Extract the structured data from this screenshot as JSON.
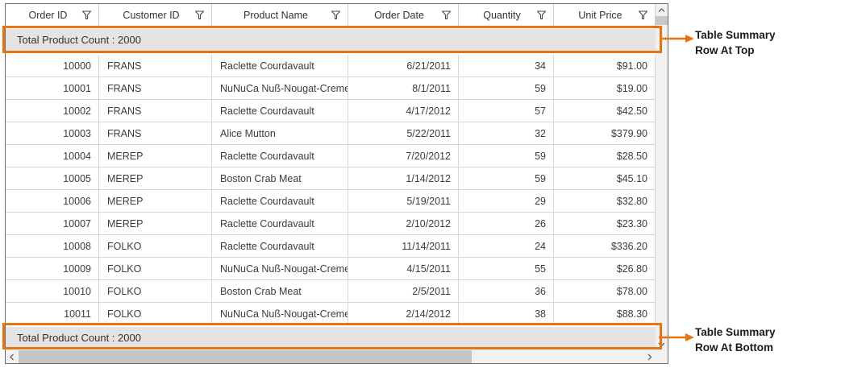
{
  "colors": {
    "highlight_orange": "#e8740e",
    "summary_row_bg": "#e4e4e4",
    "grid_border": "#6b6b6b"
  },
  "grid": {
    "columns": [
      {
        "field": "order_id",
        "label": "Order ID",
        "align": "right"
      },
      {
        "field": "customer_id",
        "label": "Customer ID",
        "align": "left"
      },
      {
        "field": "product_name",
        "label": "Product Name",
        "align": "left"
      },
      {
        "field": "order_date",
        "label": "Order Date",
        "align": "right"
      },
      {
        "field": "quantity",
        "label": "Quantity",
        "align": "right"
      },
      {
        "field": "unit_price",
        "label": "Unit Price",
        "align": "right"
      }
    ],
    "summary_top": "Total Product Count : 2000",
    "summary_bottom": "Total Product Count : 2000",
    "rows": [
      [
        "10000",
        "FRANS",
        "Raclette Courdavault",
        "6/21/2011",
        "34",
        "$91.00"
      ],
      [
        "10001",
        "FRANS",
        "NuNuCa Nuß-Nougat-Creme",
        "8/1/2011",
        "59",
        "$19.00"
      ],
      [
        "10002",
        "FRANS",
        "Raclette Courdavault",
        "4/17/2012",
        "57",
        "$42.50"
      ],
      [
        "10003",
        "FRANS",
        "Alice Mutton",
        "5/22/2011",
        "32",
        "$379.90"
      ],
      [
        "10004",
        "MEREP",
        "Raclette Courdavault",
        "7/20/2012",
        "59",
        "$28.50"
      ],
      [
        "10005",
        "MEREP",
        "Boston Crab Meat",
        "1/14/2012",
        "59",
        "$45.10"
      ],
      [
        "10006",
        "MEREP",
        "Raclette Courdavault",
        "5/19/2011",
        "29",
        "$32.80"
      ],
      [
        "10007",
        "MEREP",
        "Raclette Courdavault",
        "2/10/2012",
        "26",
        "$23.30"
      ],
      [
        "10008",
        "FOLKO",
        "Raclette Courdavault",
        "11/14/2011",
        "24",
        "$336.20"
      ],
      [
        "10009",
        "FOLKO",
        "NuNuCa Nuß-Nougat-Creme",
        "4/15/2011",
        "55",
        "$26.80"
      ],
      [
        "10010",
        "FOLKO",
        "Boston Crab Meat",
        "2/5/2011",
        "36",
        "$78.00"
      ],
      [
        "10011",
        "FOLKO",
        "NuNuCa Nuß-Nougat-Creme",
        "2/14/2012",
        "38",
        "$88.30"
      ]
    ]
  },
  "annotations": {
    "top": {
      "line1": "Table Summary",
      "line2": "Row At Top"
    },
    "bottom": {
      "line1": "Table Summary",
      "line2": "Row At Bottom"
    }
  }
}
